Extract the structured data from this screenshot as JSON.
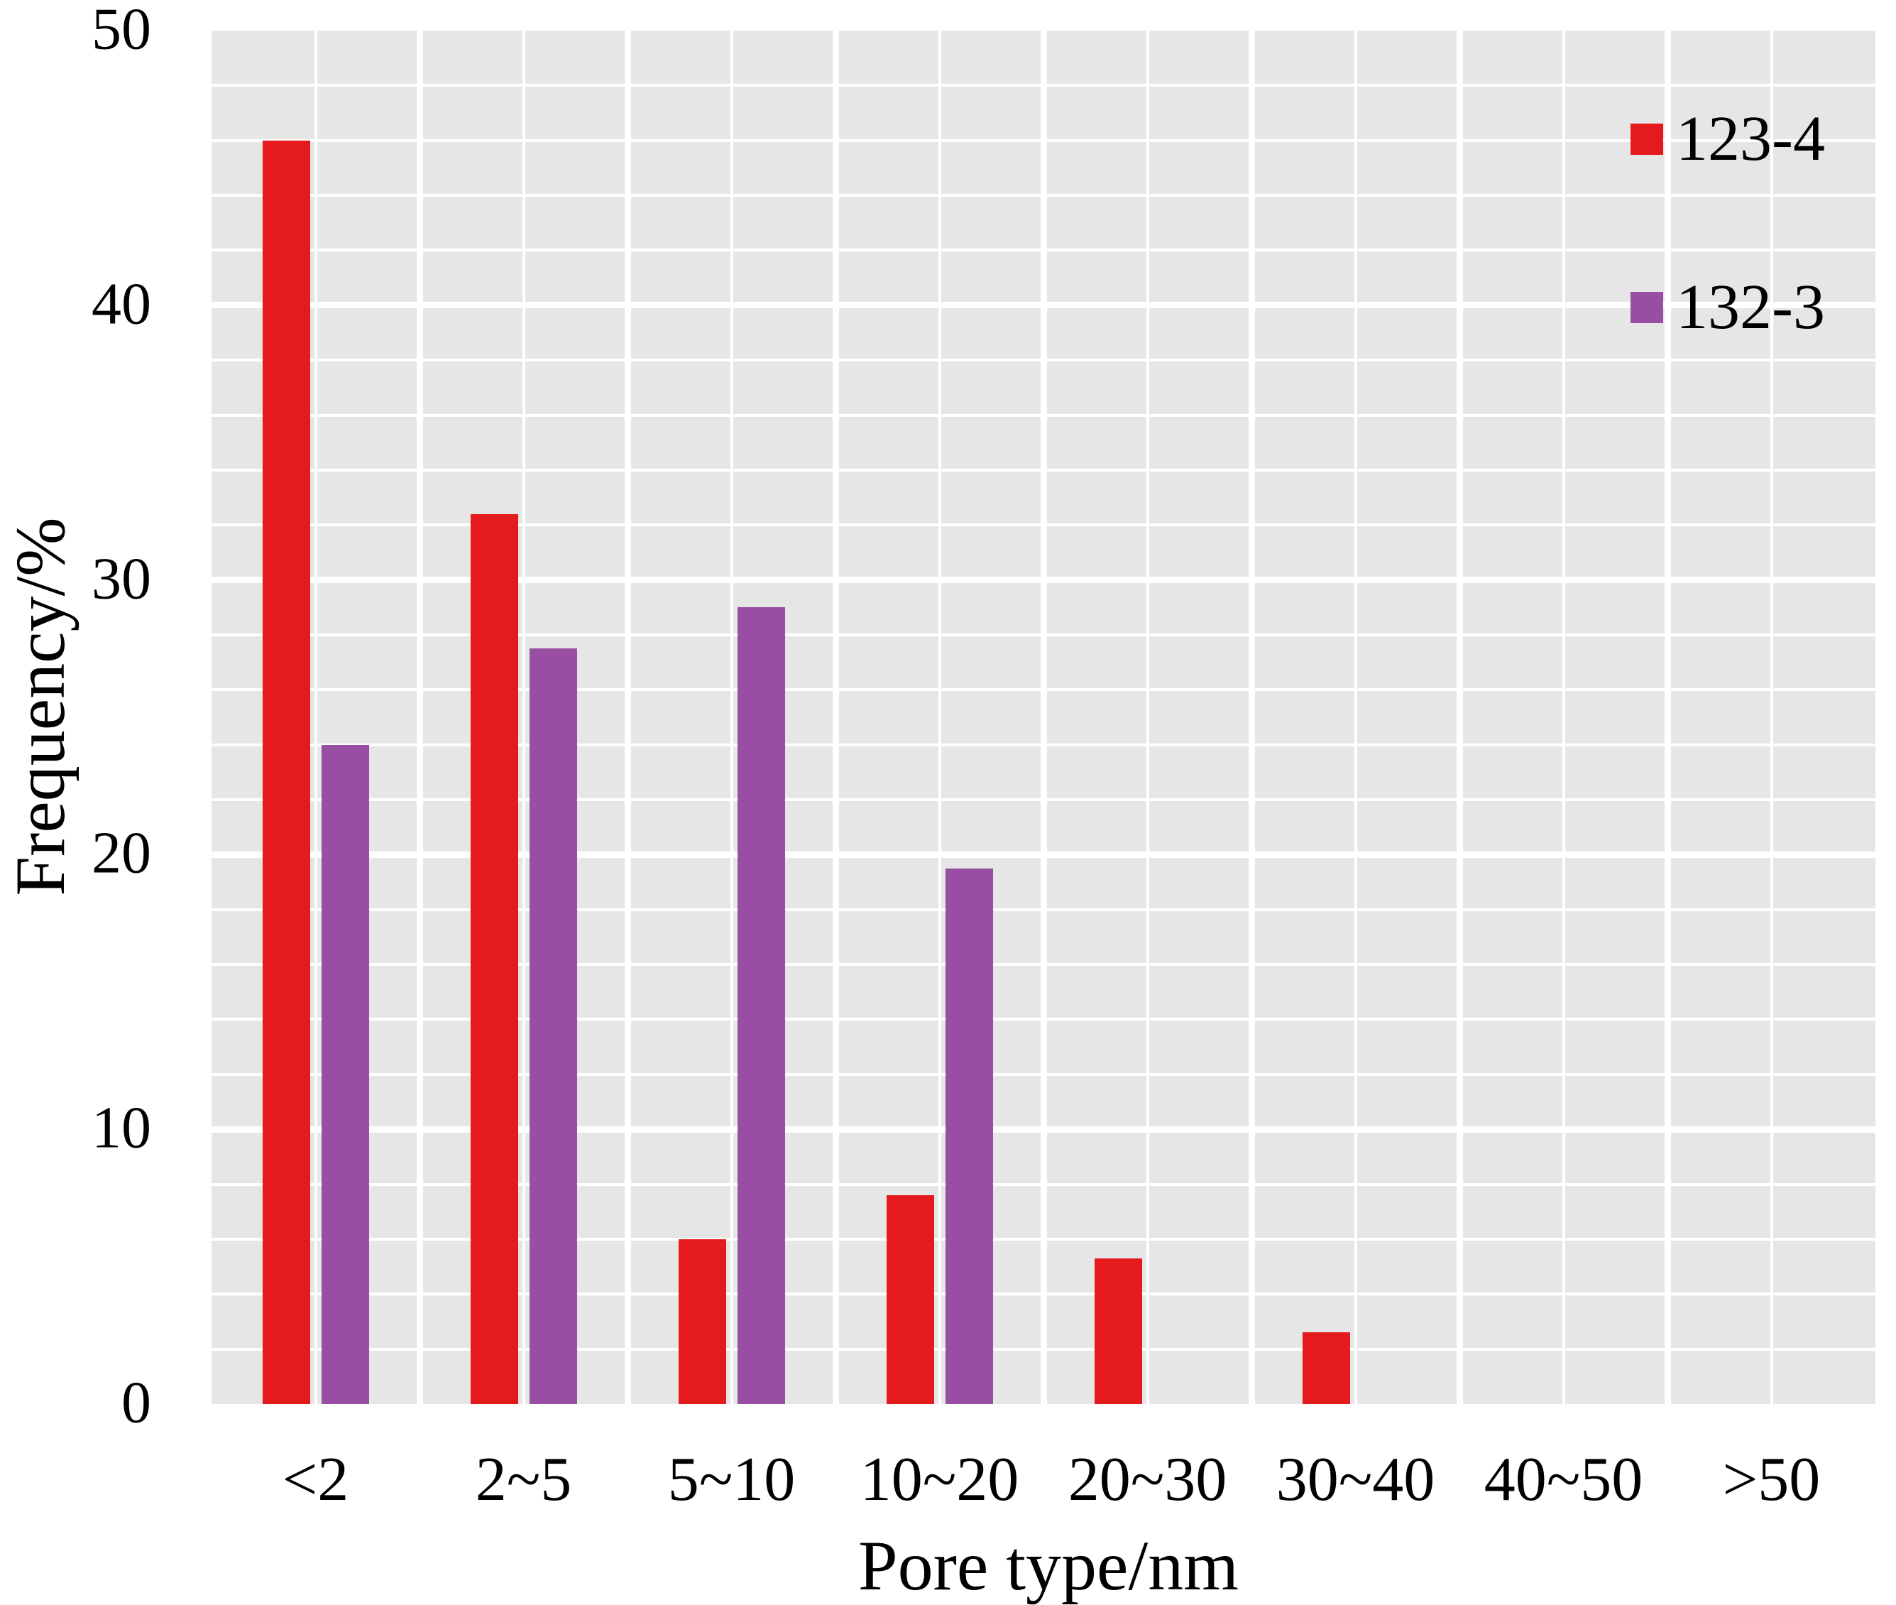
{
  "figure": {
    "background_color": "#ffffff",
    "text_color": "#000000"
  },
  "chart_data": {
    "type": "bar",
    "title": "",
    "xlabel": "Pore type/nm",
    "ylabel": "Frequency/%",
    "categories": [
      "<2",
      "2~5",
      "5~10",
      "10~20",
      "20~30",
      "30~40",
      "40~50",
      ">50"
    ],
    "series": [
      {
        "name": "123-4",
        "color": "#e41a1c",
        "values": [
          46,
          32.4,
          6,
          7.6,
          5.3,
          2.6,
          0,
          0
        ]
      },
      {
        "name": "132-3",
        "color": "#984ea3",
        "values": [
          24,
          27.5,
          29,
          19.5,
          0,
          0,
          0,
          0
        ]
      }
    ],
    "ylim": [
      0,
      50
    ],
    "yticks": [
      0,
      10,
      20,
      30,
      40,
      50
    ],
    "grid": {
      "on": true,
      "background": "#e6e6e6",
      "line_color": "#ffffff",
      "minor_step_y": 2,
      "major_step_y": 10
    },
    "legend_position": "top-right"
  }
}
